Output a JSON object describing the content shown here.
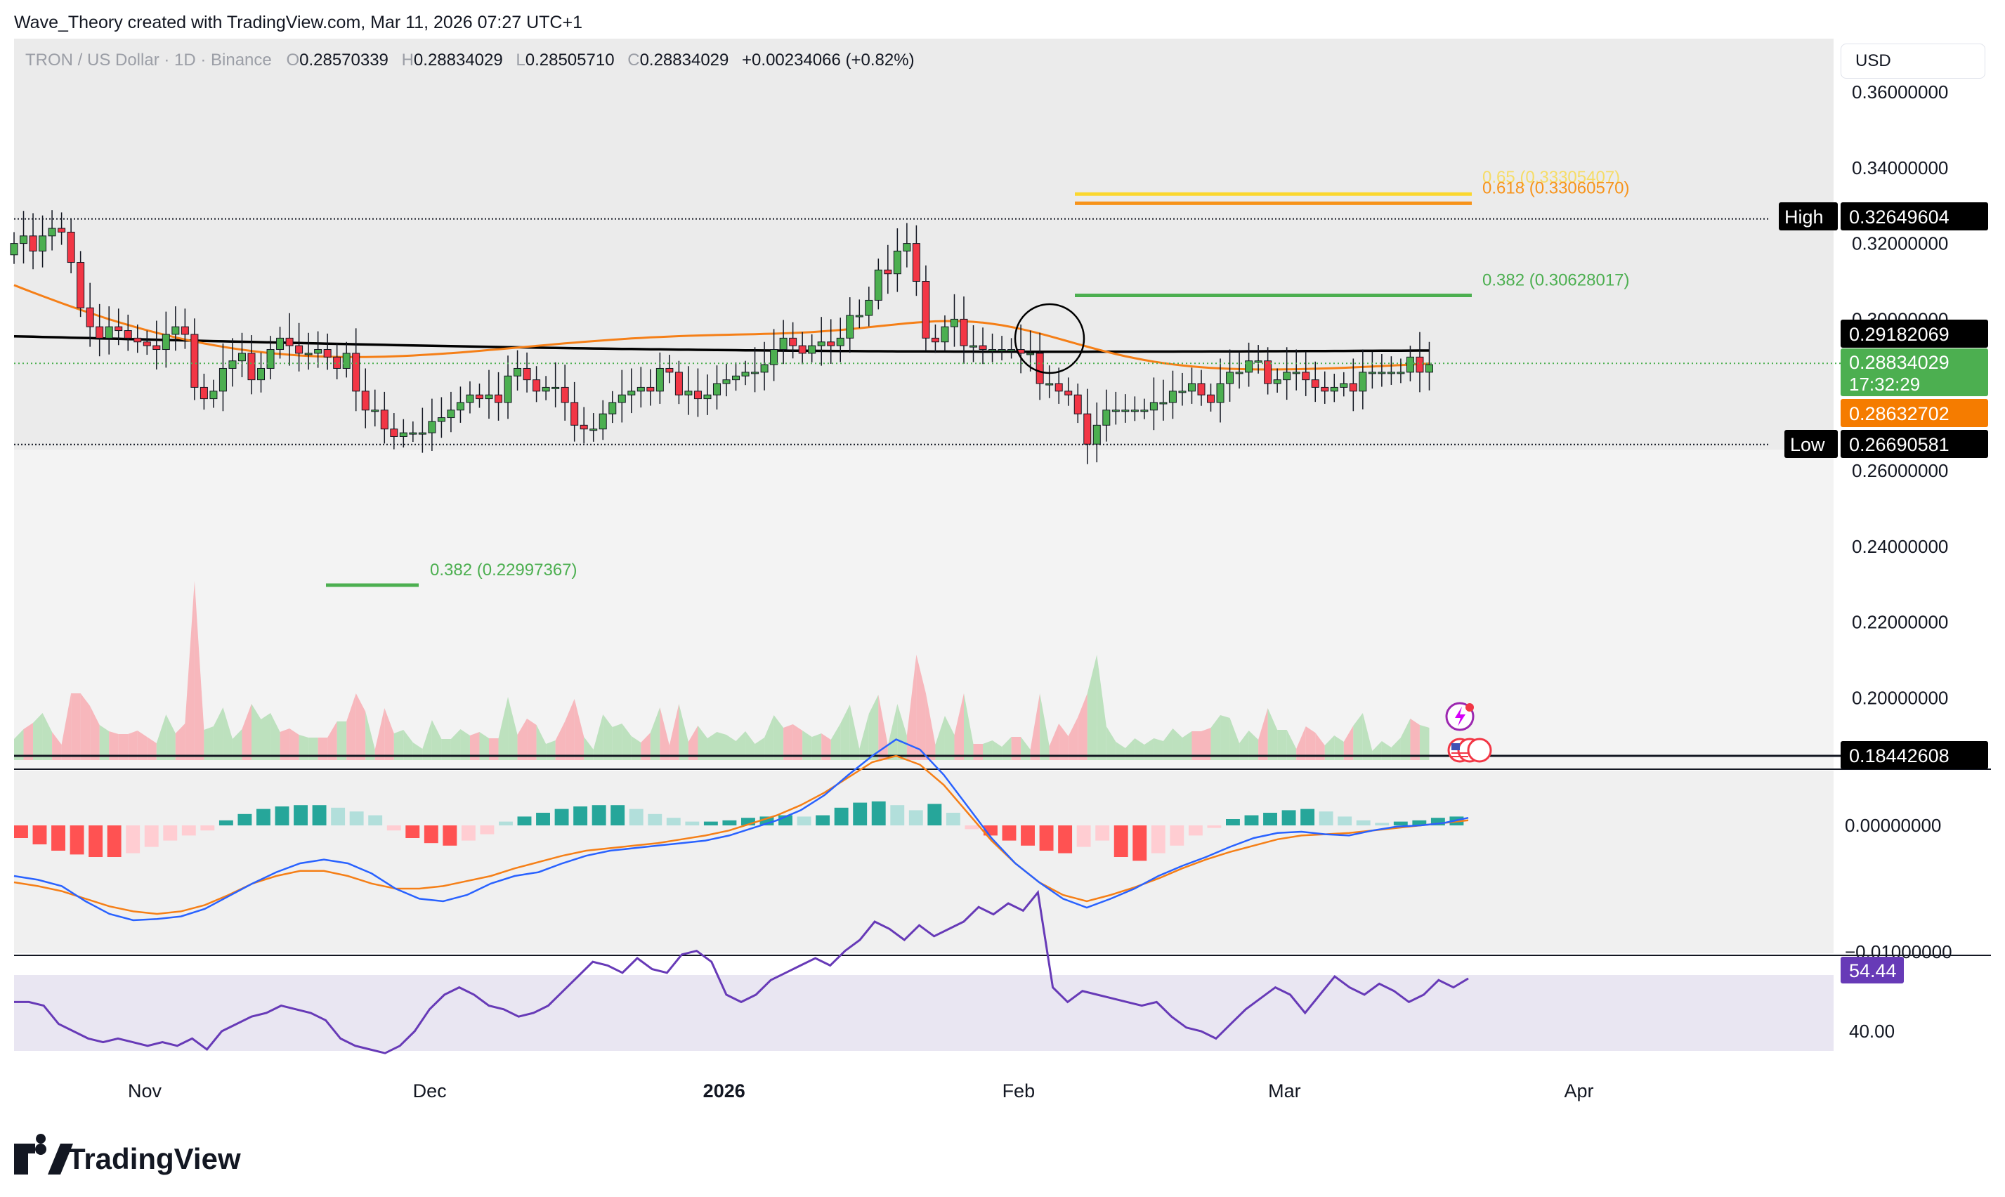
{
  "header": {
    "credit": "Wave_Theory created with TradingView.com, Mar 11, 2026 07:27 UTC+1",
    "symbol": "TRON / US Dollar · 1D · Binance",
    "o_label": "O",
    "o_value": "0.28570339",
    "h_label": "H",
    "h_value": "0.28834029",
    "l_label": "L",
    "l_value": "0.28505710",
    "c_label": "C",
    "c_value": "0.28834029",
    "change": "+0.00234066 (+0.82%)",
    "currency_button": "USD"
  },
  "footer": {
    "logo_text": "TradingView"
  },
  "colors": {
    "up": "#4caf50",
    "down": "#f23645",
    "ma_orange": "#f57f17",
    "ma_black": "#000000",
    "fib_yellow": "#fbd72e",
    "fib_orange": "#f7931a",
    "fib_green": "#4caf50",
    "rsi": "#673ab7",
    "macd": "#2962ff"
  },
  "chart_data": [
    {
      "type": "candlestick",
      "pane": "price",
      "x_axis_labels": [
        "Nov",
        "Dec",
        "2026",
        "Feb",
        "Mar",
        "Apr"
      ],
      "x_axis_positions_days": [
        0,
        30,
        61,
        92,
        120,
        151
      ],
      "y_tick_labels": [
        "0.36000000",
        "0.34000000",
        "0.32000000",
        "0.30000000",
        "0.26000000",
        "0.24000000",
        "0.22000000",
        "0.20000000"
      ],
      "y_tick_values": [
        0.36,
        0.34,
        0.32,
        0.3,
        0.26,
        0.24,
        0.22,
        0.2
      ],
      "ylim": [
        0.184,
        0.365
      ],
      "close": [
        0.32,
        0.322,
        0.318,
        0.322,
        0.324,
        0.323,
        0.315,
        0.303,
        0.298,
        0.295,
        0.298,
        0.297,
        0.295,
        0.294,
        0.293,
        0.292,
        0.296,
        0.298,
        0.296,
        0.282,
        0.279,
        0.281,
        0.287,
        0.289,
        0.291,
        0.284,
        0.287,
        0.292,
        0.295,
        0.293,
        0.291,
        0.291,
        0.292,
        0.29,
        0.287,
        0.291,
        0.281,
        0.276,
        0.276,
        0.271,
        0.269,
        0.27,
        0.27,
        0.27,
        0.273,
        0.274,
        0.276,
        0.278,
        0.28,
        0.279,
        0.28,
        0.278,
        0.285,
        0.287,
        0.284,
        0.281,
        0.282,
        0.282,
        0.278,
        0.272,
        0.271,
        0.271,
        0.275,
        0.278,
        0.28,
        0.281,
        0.282,
        0.281,
        0.287,
        0.286,
        0.28,
        0.281,
        0.279,
        0.28,
        0.283,
        0.284,
        0.285,
        0.286,
        0.286,
        0.288,
        0.292,
        0.295,
        0.293,
        0.291,
        0.293,
        0.294,
        0.293,
        0.295,
        0.301,
        0.301,
        0.305,
        0.313,
        0.312,
        0.318,
        0.32,
        0.31,
        0.295,
        0.294,
        0.298,
        0.3,
        0.293,
        0.293,
        0.292,
        0.292,
        0.292,
        0.292,
        0.291,
        0.291,
        0.283,
        0.283,
        0.281,
        0.28,
        0.275,
        0.267,
        0.272,
        0.276,
        0.276,
        0.276,
        0.276,
        0.276,
        0.278,
        0.278,
        0.281,
        0.281,
        0.283,
        0.28,
        0.278,
        0.283,
        0.286,
        0.286,
        0.289,
        0.289,
        0.283,
        0.284,
        0.286,
        0.286,
        0.284,
        0.282,
        0.281,
        0.282,
        0.283,
        0.281,
        0.286,
        0.286,
        0.286,
        0.286,
        0.286,
        0.29,
        0.286,
        0.288
      ],
      "moving_averages": [
        {
          "color_key": "ma_orange",
          "from": 0.303,
          "to": 0.2863,
          "last_value": "0.28632702"
        },
        {
          "color_key": "ma_black",
          "from": 0.2955,
          "to": 0.2918,
          "last_value": "0.29182069"
        }
      ],
      "price_labels": [
        {
          "text": "0.29182069",
          "value": 0.29182069,
          "style": "black"
        },
        {
          "text": "0.28834029",
          "value": 0.28834029,
          "style": "green",
          "countdown": "17:32:29"
        },
        {
          "text": "0.28632702",
          "value": 0.28632702,
          "style": "orange"
        }
      ],
      "high": {
        "label": "High",
        "value_text": "0.32649604",
        "value": 0.32649604
      },
      "low": {
        "label": "Low",
        "value_text": "0.26690581",
        "value": 0.26690581
      },
      "fibonacci": [
        {
          "text": "0.65 (0.33305407)",
          "value": 0.33305407,
          "color_key": "fib_yellow"
        },
        {
          "text": "0.618 (0.33060570)",
          "value": 0.3306057,
          "color_key": "fib_orange"
        },
        {
          "text": "0.382 (0.30628017)",
          "value": 0.30628017,
          "color_key": "fib_green"
        },
        {
          "text": "0.382 (0.22997367)",
          "value": 0.22997367,
          "color_key": "fib_green"
        }
      ],
      "volume_line": {
        "text": "0.18442608",
        "value": 0.18442608
      }
    },
    {
      "type": "bar",
      "pane": "macd",
      "y_tick_labels": [
        "0.00000000",
        "−0.01000000"
      ],
      "y_tick_values": [
        0,
        -0.01
      ],
      "ylim": [
        -0.0125,
        0.0075
      ],
      "histogram": [
        -0.001,
        -0.0015,
        -0.002,
        -0.0023,
        -0.0025,
        -0.0025,
        -0.0022,
        -0.0017,
        -0.0012,
        -0.0008,
        -0.0004,
        0.0004,
        0.0009,
        0.0013,
        0.0015,
        0.0016,
        0.0016,
        0.0014,
        0.0011,
        0.0008,
        -0.0004,
        -0.001,
        -0.0014,
        -0.0016,
        -0.0012,
        -0.0007,
        0.0003,
        0.0007,
        0.001,
        0.0013,
        0.0015,
        0.0016,
        0.0016,
        0.0013,
        0.0009,
        0.0006,
        0.0003,
        0.0003,
        0.0004,
        0.0006,
        0.0007,
        0.0008,
        0.0007,
        0.0008,
        0.0014,
        0.0018,
        0.0019,
        0.0016,
        0.0012,
        0.0017,
        0.001,
        -0.0003,
        -0.0008,
        -0.0012,
        -0.0016,
        -0.002,
        -0.0022,
        -0.0017,
        -0.0012,
        -0.0025,
        -0.0028,
        -0.0022,
        -0.0016,
        -0.0008,
        -0.0002,
        0.0005,
        0.0008,
        0.001,
        0.0012,
        0.0013,
        0.0011,
        0.0007,
        0.0004,
        0.0002,
        0.0003,
        0.0004,
        0.0006,
        0.0007
      ],
      "macd_line": [
        -0.004,
        -0.0043,
        -0.0048,
        -0.006,
        -0.007,
        -0.0075,
        -0.0074,
        -0.0072,
        -0.0066,
        -0.0056,
        -0.0046,
        -0.0037,
        -0.003,
        -0.0027,
        -0.003,
        -0.0038,
        -0.005,
        -0.0058,
        -0.006,
        -0.0055,
        -0.0046,
        -0.004,
        -0.0037,
        -0.003,
        -0.0024,
        -0.002,
        -0.0018,
        -0.0016,
        -0.0014,
        -0.0012,
        -0.0008,
        -0.0002,
        0.0004,
        0.0012,
        0.0024,
        0.004,
        0.0055,
        0.0068,
        0.006,
        0.004,
        0.0015,
        -0.001,
        -0.003,
        -0.0045,
        -0.0058,
        -0.0065,
        -0.0058,
        -0.005,
        -0.004,
        -0.0032,
        -0.0025,
        -0.0017,
        -0.001,
        -0.0006,
        -0.0005,
        -0.0007,
        -0.0008,
        -0.0004,
        -0.0001,
        0.0,
        0.0002,
        0.0006
      ],
      "signal_line": [
        -0.0045,
        -0.0048,
        -0.0052,
        -0.0058,
        -0.0064,
        -0.0068,
        -0.007,
        -0.0068,
        -0.0063,
        -0.0055,
        -0.0046,
        -0.004,
        -0.0036,
        -0.0036,
        -0.004,
        -0.0046,
        -0.005,
        -0.005,
        -0.0048,
        -0.0044,
        -0.004,
        -0.0034,
        -0.0029,
        -0.0024,
        -0.002,
        -0.0018,
        -0.0016,
        -0.0014,
        -0.0011,
        -0.0008,
        -0.0004,
        0.0002,
        0.0008,
        0.0016,
        0.0026,
        0.0038,
        0.005,
        0.0055,
        0.0048,
        0.0032,
        0.001,
        -0.0012,
        -0.003,
        -0.0045,
        -0.0055,
        -0.006,
        -0.0055,
        -0.0049,
        -0.0042,
        -0.0034,
        -0.0027,
        -0.0021,
        -0.0016,
        -0.0011,
        -0.0008,
        -0.0007,
        -0.0006,
        -0.0004,
        -0.0002,
        0.0,
        0.0002,
        0.0004
      ]
    },
    {
      "type": "line",
      "pane": "rsi",
      "y_tick_labels": [
        "40.00"
      ],
      "y_tick_values": [
        40
      ],
      "ylim": [
        20,
        90
      ],
      "last_value": "54.44",
      "values": [
        48,
        48,
        47,
        42,
        40,
        38,
        37,
        38,
        37,
        36,
        37,
        36,
        38,
        35,
        40,
        42,
        44,
        45,
        47,
        46,
        45,
        43,
        38,
        36,
        35,
        34,
        36,
        40,
        46,
        50,
        52,
        50,
        47,
        46,
        44,
        45,
        47,
        51,
        55,
        59,
        58,
        56,
        60,
        57,
        56,
        61,
        62,
        59,
        50,
        48,
        50,
        54,
        56,
        58,
        60,
        58,
        62,
        65,
        70,
        68,
        65,
        69,
        66,
        68,
        70,
        74,
        72,
        75,
        73,
        78,
        52,
        48,
        51,
        50,
        49,
        48,
        47,
        48,
        44,
        41,
        40,
        38,
        42,
        46,
        49,
        52,
        50,
        45,
        50,
        55,
        52,
        50,
        53,
        51,
        48,
        50,
        54,
        52,
        54.44
      ]
    }
  ]
}
